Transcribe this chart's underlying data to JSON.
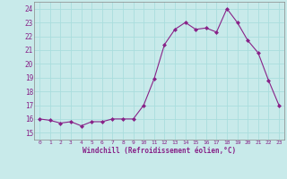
{
  "x": [
    0,
    1,
    2,
    3,
    4,
    5,
    6,
    7,
    8,
    9,
    10,
    11,
    12,
    13,
    14,
    15,
    16,
    17,
    18,
    19,
    20,
    21,
    22,
    23
  ],
  "y": [
    16.0,
    15.9,
    15.7,
    15.8,
    15.5,
    15.8,
    15.8,
    16.0,
    16.0,
    16.0,
    17.0,
    18.9,
    21.4,
    22.5,
    23.0,
    22.5,
    22.6,
    22.3,
    24.0,
    23.0,
    21.7,
    20.8,
    18.8,
    17.0
  ],
  "line_color": "#882288",
  "marker": "D",
  "marker_size": 2.0,
  "bg_color": "#c8eaea",
  "grid_color": "#aadddd",
  "xlabel": "Windchill (Refroidissement éolien,°C)",
  "xlabel_color": "#882288",
  "tick_color": "#882288",
  "ylim": [
    14.5,
    24.5
  ],
  "xlim": [
    -0.5,
    23.5
  ],
  "yticks": [
    15,
    16,
    17,
    18,
    19,
    20,
    21,
    22,
    23,
    24
  ],
  "xticks": [
    0,
    1,
    2,
    3,
    4,
    5,
    6,
    7,
    8,
    9,
    10,
    11,
    12,
    13,
    14,
    15,
    16,
    17,
    18,
    19,
    20,
    21,
    22,
    23
  ]
}
